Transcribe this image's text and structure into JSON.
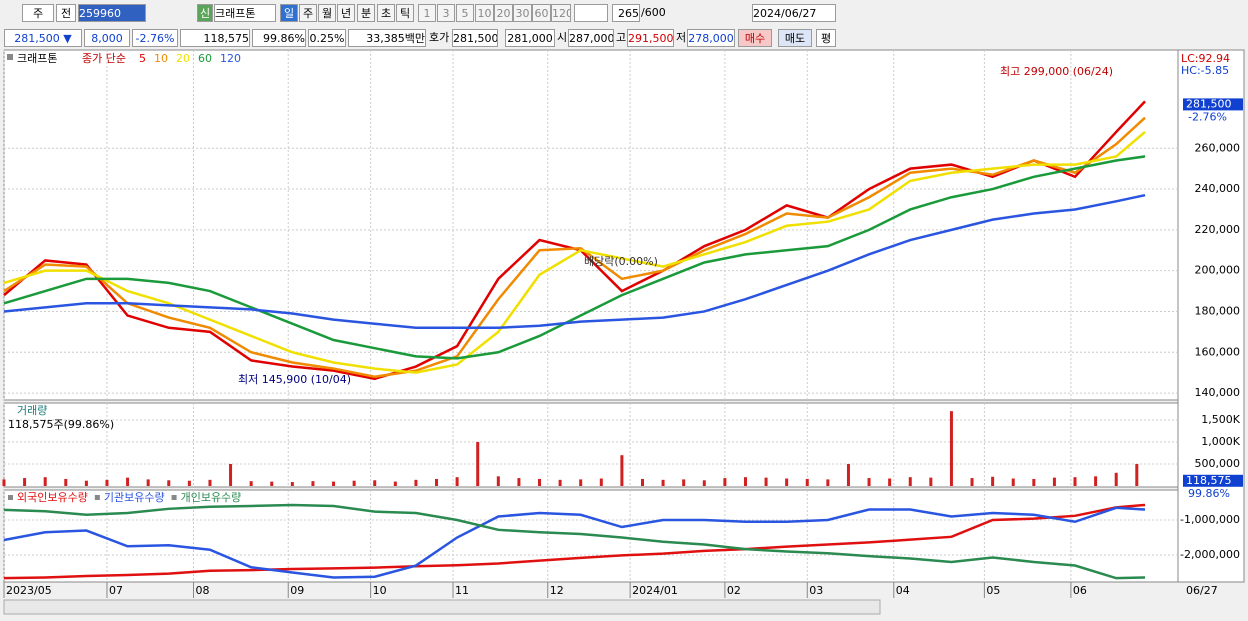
{
  "toolbar": {
    "market": "주",
    "range": "전",
    "code": "259960",
    "new": "신",
    "name": "크래프톤",
    "periods": [
      "일",
      "주",
      "월",
      "년",
      "분",
      "초",
      "틱"
    ],
    "intervals": [
      "1",
      "3",
      "5",
      "10",
      "20",
      "30",
      "60",
      "120"
    ],
    "count": "265",
    "max": "/600",
    "date": "2024/06/27"
  },
  "info_bar": {
    "price": "281,500 ▼",
    "change": "8,000",
    "change_pct": "-2.76%",
    "volume": "118,575",
    "volume_pct": "99.86%",
    "turnover_pct": "0.25%",
    "amount": "33,385백만",
    "quote_label": "호가",
    "ask": "281,500",
    "bid": "281,000",
    "open_label": "시",
    "open": "287,000",
    "high_label": "고",
    "high": "291,500",
    "low_label": "저",
    "low": "278,000",
    "buy": "매수",
    "sell": "매도",
    "avg": "평"
  },
  "chart_data": [
    {
      "type": "line",
      "title": "크래프톤",
      "legend_label": "종가 단순",
      "lc": "LC:92.94",
      "hc": "HC:-5.85",
      "high_note": "최고 299,000 (06/24)",
      "low_note": "최저 145,900 (10/04)",
      "dividend_note": "배당락(0.00%)",
      "last_value": 281500,
      "last_value_label": "281,500",
      "last_change": "-2.76%",
      "x": [
        0,
        10,
        20,
        30,
        40,
        50,
        60,
        70,
        80,
        90,
        100,
        110,
        120,
        130,
        140,
        150,
        160,
        170,
        180,
        190,
        200,
        210,
        220,
        230,
        240,
        250,
        260,
        270,
        277
      ],
      "xlim": [
        0,
        285
      ],
      "ylim": [
        136600,
        301300
      ],
      "grid": true,
      "yticks": [
        {
          "value": 140000,
          "label": "140,000"
        },
        {
          "value": 160000,
          "label": "160,000"
        },
        {
          "value": 180000,
          "label": "180,000"
        },
        {
          "value": 200000,
          "label": "200,000"
        },
        {
          "value": 220000,
          "label": "220,000"
        },
        {
          "value": 240000,
          "label": "240,000"
        },
        {
          "value": 260000,
          "label": "260,000"
        }
      ],
      "series": [
        {
          "name": "5",
          "color": "#e00000",
          "values": [
            188000,
            205000,
            203000,
            178000,
            172000,
            170000,
            156000,
            153000,
            151000,
            147000,
            153000,
            163000,
            196000,
            215000,
            210000,
            190000,
            200000,
            212000,
            220000,
            232000,
            226000,
            240000,
            250000,
            252000,
            246000,
            254000,
            246000,
            268000,
            283000
          ]
        },
        {
          "name": "10",
          "color": "#f08a00",
          "values": [
            190000,
            203000,
            202000,
            184000,
            177000,
            172000,
            160000,
            155000,
            152000,
            148000,
            151000,
            158000,
            186000,
            210000,
            211000,
            196000,
            200000,
            210000,
            218000,
            228000,
            226000,
            236000,
            248000,
            250000,
            247000,
            254000,
            248000,
            262000,
            275000
          ]
        },
        {
          "name": "20",
          "color": "#f0e000",
          "values": [
            194000,
            200000,
            200000,
            190000,
            184000,
            176000,
            168000,
            160000,
            155000,
            152000,
            150000,
            154000,
            170000,
            198000,
            210000,
            206000,
            202000,
            208000,
            214000,
            222000,
            224000,
            230000,
            244000,
            248000,
            250000,
            252000,
            252000,
            256000,
            268000
          ]
        },
        {
          "name": "60",
          "color": "#1a9a3a",
          "values": [
            184000,
            190000,
            196000,
            196000,
            194000,
            190000,
            182000,
            174000,
            166000,
            162000,
            158000,
            157000,
            160000,
            168000,
            178000,
            188000,
            196000,
            204000,
            208000,
            210000,
            212000,
            220000,
            230000,
            236000,
            240000,
            246000,
            250000,
            254000,
            256000
          ]
        },
        {
          "name": "120",
          "color": "#2a55e0",
          "values": [
            180000,
            182000,
            184000,
            184000,
            183000,
            182000,
            181000,
            179000,
            176000,
            174000,
            172000,
            172000,
            172000,
            173000,
            175000,
            176000,
            177000,
            180000,
            186000,
            193000,
            200000,
            208000,
            215000,
            220000,
            225000,
            228000,
            230000,
            234000,
            237000
          ]
        }
      ]
    },
    {
      "type": "bar",
      "title": "거래량",
      "subtitle": "118,575주(99.86%)",
      "color": "#d02020",
      "last_value": 118575,
      "last_value_label": "118,575",
      "last_pct": "99.86%",
      "x": [
        0,
        5,
        10,
        15,
        20,
        25,
        30,
        35,
        40,
        45,
        50,
        55,
        60,
        65,
        70,
        75,
        80,
        85,
        90,
        95,
        100,
        105,
        110,
        115,
        120,
        125,
        130,
        135,
        140,
        145,
        150,
        155,
        160,
        165,
        170,
        175,
        180,
        185,
        190,
        195,
        200,
        205,
        210,
        215,
        220,
        225,
        230,
        235,
        240,
        245,
        250,
        255,
        260,
        265,
        270,
        275
      ],
      "values": [
        150000,
        180000,
        200000,
        160000,
        120000,
        140000,
        190000,
        150000,
        130000,
        120000,
        140000,
        500000,
        110000,
        100000,
        90000,
        110000,
        100000,
        120000,
        130000,
        100000,
        140000,
        160000,
        200000,
        1000000,
        220000,
        180000,
        160000,
        140000,
        150000,
        170000,
        700000,
        160000,
        140000,
        150000,
        130000,
        180000,
        200000,
        190000,
        170000,
        160000,
        150000,
        500000,
        180000,
        170000,
        200000,
        190000,
        1700000,
        180000,
        210000,
        170000,
        160000,
        190000,
        200000,
        220000,
        300000,
        500000
      ],
      "ylim": [
        0,
        1840000
      ],
      "yticks": [
        {
          "value": 1500000,
          "label": "1,500K"
        },
        {
          "value": 1000000,
          "label": "1,000K"
        },
        {
          "value": 500000,
          "label": "500,000"
        }
      ]
    },
    {
      "type": "line",
      "x": [
        0,
        10,
        20,
        30,
        40,
        50,
        60,
        70,
        80,
        90,
        100,
        110,
        120,
        130,
        140,
        150,
        160,
        170,
        180,
        190,
        200,
        210,
        220,
        230,
        240,
        250,
        260,
        270,
        277
      ],
      "xlim": [
        0,
        285
      ],
      "ylim": [
        -2770000,
        -200000
      ],
      "yticks": [
        {
          "value": -1000000,
          "label": "-1,000,000"
        },
        {
          "value": -2000000,
          "label": "-2,000,000"
        }
      ],
      "xticks": [
        {
          "value": 0,
          "label": "2023/05"
        },
        {
          "value": 25,
          "label": "07"
        },
        {
          "value": 46,
          "label": "08"
        },
        {
          "value": 69,
          "label": "09"
        },
        {
          "value": 89,
          "label": "10"
        },
        {
          "value": 109,
          "label": "11"
        },
        {
          "value": 132,
          "label": "12"
        },
        {
          "value": 152,
          "label": "2024/01"
        },
        {
          "value": 175,
          "label": "02"
        },
        {
          "value": 195,
          "label": "03"
        },
        {
          "value": 216,
          "label": "04"
        },
        {
          "value": 238,
          "label": "05"
        },
        {
          "value": 259,
          "label": "06"
        }
      ],
      "end_label": "06/27",
      "series": [
        {
          "name": "외국인보유수량",
          "color": "#e01010",
          "values": [
            -2660000,
            -2640000,
            -2600000,
            -2570000,
            -2530000,
            -2450000,
            -2430000,
            -2400000,
            -2380000,
            -2360000,
            -2320000,
            -2290000,
            -2240000,
            -2160000,
            -2080000,
            -2010000,
            -1960000,
            -1880000,
            -1830000,
            -1760000,
            -1700000,
            -1640000,
            -1560000,
            -1480000,
            -1000000,
            -960000,
            -880000,
            -640000,
            -570000
          ]
        },
        {
          "name": "기관보유수량",
          "color": "#2a55e0",
          "values": [
            -1570000,
            -1350000,
            -1300000,
            -1750000,
            -1720000,
            -1850000,
            -2350000,
            -2500000,
            -2640000,
            -2620000,
            -2300000,
            -1500000,
            -900000,
            -800000,
            -850000,
            -1200000,
            -1000000,
            -1000000,
            -1050000,
            -1050000,
            -1000000,
            -700000,
            -700000,
            -900000,
            -800000,
            -850000,
            -1050000,
            -650000,
            -700000
          ]
        },
        {
          "name": "개인보유수량",
          "color": "#2a8a50",
          "values": [
            -710000,
            -750000,
            -850000,
            -800000,
            -680000,
            -620000,
            -600000,
            -570000,
            -600000,
            -760000,
            -800000,
            -1000000,
            -1280000,
            -1350000,
            -1400000,
            -1500000,
            -1620000,
            -1700000,
            -1830000,
            -1900000,
            -1950000,
            -2030000,
            -2100000,
            -2200000,
            -2070000,
            -2200000,
            -2300000,
            -2660000,
            -2640000
          ]
        }
      ]
    }
  ]
}
